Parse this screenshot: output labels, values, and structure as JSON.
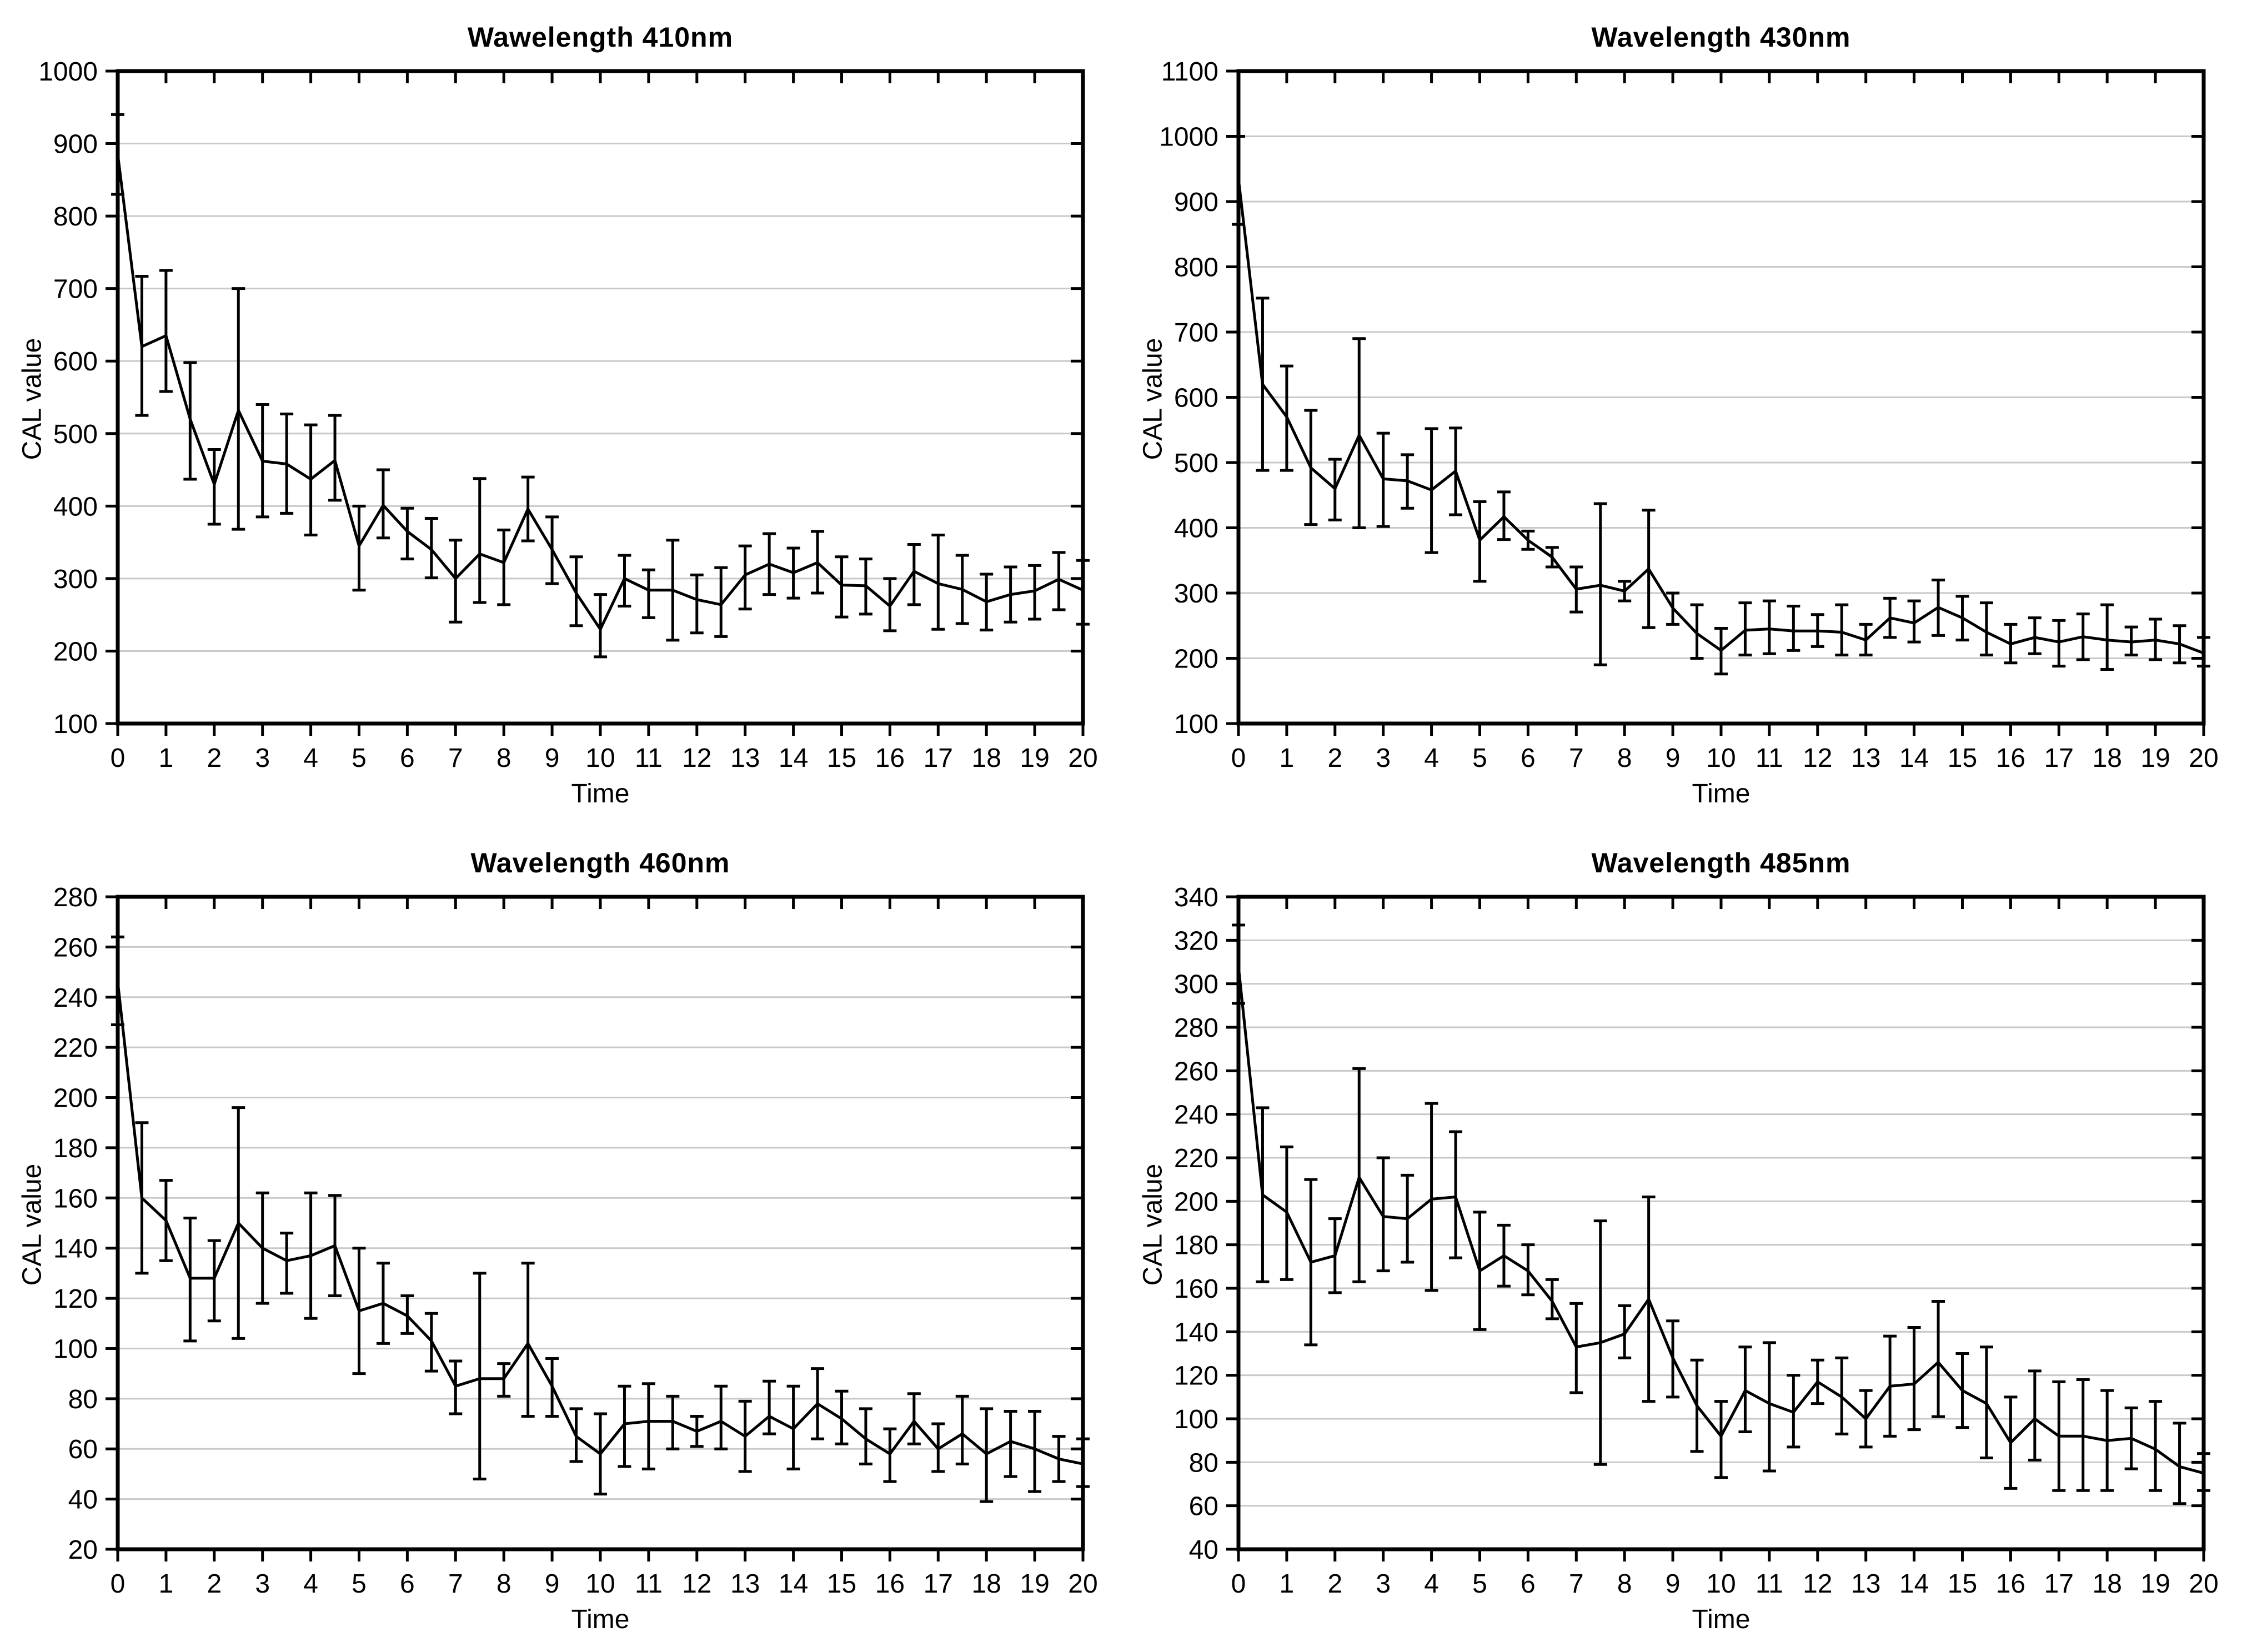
{
  "page": {
    "background": "#ffffff",
    "series_color": "#000000",
    "grid_color": "#c9c9c9",
    "axis_color": "#000000"
  },
  "chart_data": [
    {
      "type": "line",
      "title": "Wawelength 410nm",
      "xlabel": "Time",
      "ylabel": "CAL value",
      "legend": "none",
      "grid": "horizontal",
      "error_bars": true,
      "xlim": [
        0,
        20
      ],
      "xtick_step": 1,
      "ylim": [
        100,
        1000
      ],
      "ytick_step": 100,
      "x": [
        0,
        0.5,
        1,
        1.5,
        2,
        2.5,
        3,
        3.5,
        4,
        4.5,
        5,
        5.5,
        6,
        6.5,
        7,
        7.5,
        8,
        8.5,
        9,
        9.5,
        10,
        10.5,
        11,
        11.5,
        12,
        12.5,
        13,
        13.5,
        14,
        14.5,
        15,
        15.5,
        16,
        16.5,
        17,
        17.5,
        18,
        18.5,
        19,
        19.5,
        20
      ],
      "y": [
        885,
        620,
        635,
        520,
        430,
        532,
        462,
        458,
        437,
        463,
        345,
        401,
        365,
        340,
        300,
        334,
        322,
        396,
        340,
        280,
        230,
        300,
        284,
        284,
        271,
        264,
        305,
        320,
        308,
        322,
        291,
        290,
        262,
        310,
        293,
        285,
        268,
        278,
        283,
        299,
        284
      ],
      "err_low": [
        830,
        525,
        558,
        437,
        375,
        368,
        385,
        390,
        360,
        408,
        284,
        356,
        327,
        301,
        240,
        267,
        264,
        352,
        293,
        235,
        192,
        262,
        246,
        215,
        225,
        220,
        258,
        278,
        273,
        280,
        247,
        251,
        228,
        264,
        230,
        238,
        229,
        240,
        244,
        257,
        237
      ],
      "err_high": [
        940,
        717,
        725,
        598,
        478,
        700,
        540,
        527,
        512,
        525,
        400,
        450,
        397,
        383,
        353,
        438,
        367,
        440,
        385,
        330,
        278,
        332,
        312,
        353,
        305,
        315,
        345,
        362,
        342,
        365,
        330,
        327,
        300,
        347,
        360,
        332,
        306,
        316,
        318,
        336,
        325
      ]
    },
    {
      "type": "line",
      "title": "Wavelength 430nm",
      "xlabel": "Time",
      "ylabel": "CAL value",
      "legend": "none",
      "grid": "horizontal",
      "error_bars": true,
      "xlim": [
        0,
        20
      ],
      "xtick_step": 1,
      "ylim": [
        100,
        1100
      ],
      "ytick_step": 100,
      "x": [
        0,
        0.5,
        1,
        1.5,
        2,
        2.5,
        3,
        3.5,
        4,
        4.5,
        5,
        5.5,
        6,
        6.5,
        7,
        7.5,
        8,
        8.5,
        9,
        9.5,
        10,
        10.5,
        11,
        11.5,
        12,
        12.5,
        13,
        13.5,
        14,
        14.5,
        15,
        15.5,
        16,
        16.5,
        17,
        17.5,
        18,
        18.5,
        19,
        19.5,
        20
      ],
      "y": [
        935,
        620,
        570,
        492,
        460,
        542,
        475,
        472,
        458,
        487,
        381,
        417,
        381,
        355,
        306,
        312,
        303,
        337,
        277,
        238,
        212,
        243,
        245,
        242,
        242,
        240,
        228,
        262,
        254,
        278,
        262,
        240,
        222,
        232,
        225,
        233,
        228,
        225,
        228,
        222,
        208
      ],
      "err_low": [
        865,
        488,
        488,
        405,
        412,
        400,
        402,
        430,
        362,
        420,
        318,
        382,
        367,
        340,
        271,
        190,
        288,
        247,
        252,
        200,
        176,
        205,
        207,
        212,
        218,
        205,
        205,
        232,
        225,
        235,
        228,
        205,
        193,
        207,
        188,
        198,
        183,
        205,
        198,
        193,
        188
      ],
      "err_high": [
        1000,
        752,
        648,
        580,
        505,
        690,
        545,
        512,
        552,
        553,
        440,
        455,
        395,
        370,
        340,
        437,
        318,
        427,
        300,
        282,
        246,
        285,
        288,
        280,
        267,
        282,
        252,
        292,
        288,
        320,
        295,
        285,
        252,
        262,
        258,
        268,
        282,
        248,
        260,
        250,
        232
      ]
    },
    {
      "type": "line",
      "title": "Wavelength 460nm",
      "xlabel": "Time",
      "ylabel": "CAL value",
      "legend": "none",
      "grid": "horizontal",
      "error_bars": true,
      "xlim": [
        0,
        20
      ],
      "xtick_step": 1,
      "ylim": [
        20,
        280
      ],
      "ytick_step": 20,
      "x": [
        0,
        0.5,
        1,
        1.5,
        2,
        2.5,
        3,
        3.5,
        4,
        4.5,
        5,
        5.5,
        6,
        6.5,
        7,
        7.5,
        8,
        8.5,
        9,
        9.5,
        10,
        10.5,
        11,
        11.5,
        12,
        12.5,
        13,
        13.5,
        14,
        14.5,
        15,
        15.5,
        16,
        16.5,
        17,
        17.5,
        18,
        18.5,
        19,
        19.5,
        20
      ],
      "y": [
        246,
        160,
        151,
        128,
        128,
        150,
        140,
        135,
        137,
        141,
        115,
        118,
        113,
        103,
        85,
        88,
        88,
        102,
        85,
        65,
        58,
        70,
        71,
        71,
        67,
        71,
        65,
        73,
        68,
        78,
        72,
        64,
        58,
        71,
        60,
        66,
        58,
        63,
        60,
        56,
        54
      ],
      "err_low": [
        229,
        130,
        135,
        103,
        111,
        104,
        118,
        122,
        112,
        121,
        90,
        102,
        106,
        91,
        74,
        48,
        81,
        73,
        73,
        55,
        42,
        53,
        52,
        60,
        61,
        60,
        51,
        66,
        52,
        64,
        62,
        54,
        47,
        62,
        51,
        54,
        39,
        49,
        43,
        47,
        45
      ],
      "err_high": [
        264,
        190,
        167,
        152,
        143,
        196,
        162,
        146,
        162,
        161,
        140,
        134,
        121,
        114,
        95,
        130,
        94,
        134,
        96,
        76,
        74,
        85,
        86,
        81,
        73,
        85,
        79,
        87,
        85,
        92,
        83,
        76,
        68,
        82,
        70,
        81,
        76,
        75,
        75,
        65,
        64
      ]
    },
    {
      "type": "line",
      "title": "Wavelength 485nm",
      "xlabel": "Time",
      "ylabel": "CAL value",
      "legend": "none",
      "grid": "horizontal",
      "error_bars": true,
      "xlim": [
        0,
        20
      ],
      "xtick_step": 1,
      "ylim": [
        40,
        340
      ],
      "ytick_step": 20,
      "x": [
        0,
        0.5,
        1,
        1.5,
        2,
        2.5,
        3,
        3.5,
        4,
        4.5,
        5,
        5.5,
        6,
        6.5,
        7,
        7.5,
        8,
        8.5,
        9,
        9.5,
        10,
        10.5,
        11,
        11.5,
        12,
        12.5,
        13,
        13.5,
        14,
        14.5,
        15,
        15.5,
        16,
        16.5,
        17,
        17.5,
        18,
        18.5,
        19,
        19.5,
        20
      ],
      "y": [
        308,
        203,
        195,
        172,
        175,
        211,
        193,
        192,
        201,
        202,
        168,
        175,
        168,
        154,
        133,
        135,
        139,
        155,
        128,
        106,
        92,
        113,
        107,
        103,
        117,
        110,
        100,
        115,
        116,
        126,
        113,
        107,
        89,
        100,
        92,
        92,
        90,
        91,
        86,
        78,
        75
      ],
      "err_low": [
        291,
        163,
        164,
        134,
        158,
        163,
        168,
        172,
        159,
        174,
        141,
        161,
        157,
        146,
        112,
        79,
        128,
        108,
        110,
        85,
        73,
        94,
        76,
        87,
        107,
        93,
        87,
        92,
        95,
        101,
        96,
        82,
        68,
        81,
        67,
        67,
        67,
        77,
        67,
        61,
        67
      ],
      "err_high": [
        327,
        243,
        225,
        210,
        192,
        261,
        220,
        212,
        245,
        232,
        195,
        189,
        180,
        164,
        153,
        191,
        152,
        202,
        145,
        127,
        108,
        133,
        135,
        120,
        127,
        128,
        113,
        138,
        142,
        154,
        130,
        133,
        110,
        122,
        117,
        118,
        113,
        105,
        108,
        98,
        84
      ]
    }
  ]
}
